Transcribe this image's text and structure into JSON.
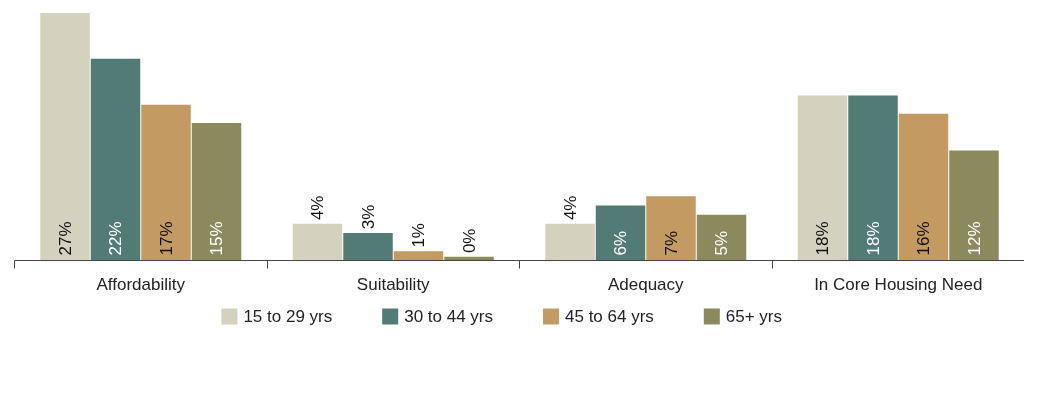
{
  "chart_data": {
    "type": "bar",
    "categories": [
      "Affordability",
      "Suitability",
      "Adequacy",
      "In Core Housing Need"
    ],
    "series": [
      {
        "name": "15 to 29 yrs",
        "color": "#d4d2bf",
        "values": [
          27,
          4,
          4,
          18
        ],
        "value_labels": [
          "27%",
          "4%",
          "4%",
          "18%"
        ]
      },
      {
        "name": "30 to 44 yrs",
        "color": "#527b76",
        "values": [
          22,
          3,
          6,
          18
        ],
        "value_labels": [
          "22%",
          "3%",
          "6%",
          "18%"
        ]
      },
      {
        "name": "45 to 64 yrs",
        "color": "#c39a62",
        "values": [
          17,
          1,
          7,
          16
        ],
        "value_labels": [
          "17%",
          "1%",
          "7%",
          "16%"
        ]
      },
      {
        "name": "65+ yrs",
        "color": "#8b8a5e",
        "values": [
          15,
          0.4,
          5,
          12
        ],
        "value_labels": [
          "15%",
          "0%",
          "5%",
          "12%"
        ]
      }
    ],
    "legend": "bottom"
  }
}
